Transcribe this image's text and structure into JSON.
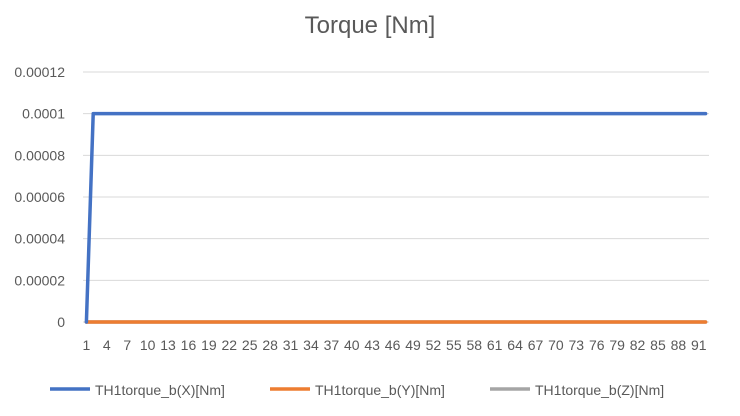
{
  "chart_data": {
    "type": "line",
    "title": "Torque [Nm]",
    "xlabel": "",
    "ylabel": "",
    "ylim": [
      0,
      0.00012
    ],
    "y_ticks": [
      "0",
      "0.00002",
      "0.00004",
      "0.00006",
      "0.00008",
      "0.0001",
      "0.00012"
    ],
    "y_tick_values": [
      0,
      2e-05,
      4e-05,
      6e-05,
      8e-05,
      0.0001,
      0.00012
    ],
    "x_count": 92,
    "x_tick_labels": [
      1,
      4,
      7,
      10,
      13,
      16,
      19,
      22,
      25,
      28,
      31,
      34,
      37,
      40,
      43,
      46,
      49,
      52,
      55,
      58,
      61,
      64,
      67,
      70,
      73,
      76,
      79,
      82,
      85,
      88,
      91
    ],
    "grid": true,
    "legend_position": "bottom",
    "series": [
      {
        "name": "TH1torque_b(X)[Nm]",
        "color": "#4472C4",
        "points": [
          [
            1,
            0
          ],
          [
            2,
            0.0001
          ],
          [
            92,
            0.0001
          ]
        ]
      },
      {
        "name": "TH1torque_b(Y)[Nm]",
        "color": "#ED7D31",
        "points": [
          [
            1,
            0
          ],
          [
            92,
            0
          ]
        ]
      },
      {
        "name": "TH1torque_b(Z)[Nm]",
        "color": "#A5A5A5",
        "points": [
          [
            1,
            0
          ],
          [
            92,
            0
          ]
        ]
      }
    ]
  }
}
